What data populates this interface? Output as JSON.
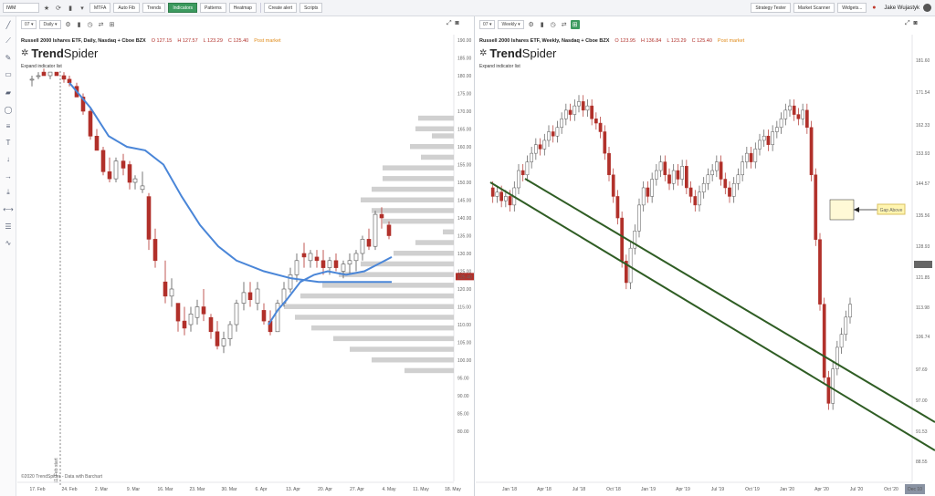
{
  "toolbar": {
    "symbol": "IWM",
    "buttons": [
      "MTFA",
      "Auto Fib",
      "Trends",
      "Indicators",
      "Patterns",
      "Heatmap",
      "Create alert",
      "Scripts"
    ],
    "right_buttons": [
      "Strategy Tester",
      "Market Scanner",
      "Widgets..."
    ],
    "user": "Jake Wujastyk"
  },
  "left_chart": {
    "interval_field": "07",
    "interval": "Daily",
    "title": "Russell 2000 Ishares ETF, Daily, Nasdaq + Cboe BZX",
    "ohlc": {
      "o": "O 127.15",
      "h": "H 127.57",
      "l": "L 123.29",
      "c": "C 125.40"
    },
    "status": "Post market",
    "logo_a": "Trend",
    "logo_b": "Spider",
    "expand": "Expand indicator list",
    "price_label": "125.40",
    "y_ticks": [
      "190.00",
      "185.00",
      "180.00",
      "175.00",
      "170.00",
      "165.00",
      "160.00",
      "155.00",
      "150.00",
      "145.00",
      "140.00",
      "135.00",
      "130.00",
      "125.00",
      "120.00",
      "115.00",
      "110.00",
      "105.00",
      "100.00",
      "95.00",
      "90.00",
      "85.00",
      "80.00"
    ],
    "x_ticks": [
      "17. Feb",
      "24. Feb",
      "2. Mar",
      "9. Mar",
      "16. Mar",
      "23. Mar",
      "30. Mar",
      "6. Apr",
      "13. Apr",
      "20. Apr",
      "27. Apr",
      "4. May",
      "11. May",
      "18. May"
    ],
    "copyright": "©2020 TrendSpider - Data with Barchart",
    "vline_label": "11. Feb start"
  },
  "right_chart": {
    "interval_field": "07",
    "interval": "Weekly",
    "title": "Russell 2000 Ishares ETF, Weekly, Nasdaq + Cboe BZX",
    "ohlc": {
      "o": "O 123.95",
      "h": "H 136.84",
      "l": "L 123.29",
      "c": "C 125.40"
    },
    "status": "Post market",
    "logo_a": "Trend",
    "logo_b": "Spider",
    "expand": "Expand indicator list",
    "price_label": "125.40",
    "gap_label": "Gap Above",
    "y_ticks": [
      "181.60",
      "171.54",
      "162.33",
      "153.93",
      "144.57",
      "135.56",
      "128.93",
      "121.85",
      "113.98",
      "106.74",
      "97.69",
      "97.00",
      "91.53",
      "88.55"
    ],
    "x_ticks": [
      "Jan '18",
      "Apr '18",
      "Jul '18",
      "Oct '18",
      "Jan '19",
      "Apr '19",
      "Jul '19",
      "Oct '19",
      "Jan '20",
      "Apr '20",
      "Jul '20",
      "Oct '20"
    ],
    "x_last": "Dec 10"
  },
  "colors": {
    "up": "#ffffff",
    "down": "#b1302a",
    "ma": "#4a86d8",
    "trend": "#2f5d24",
    "profile": "#c8c8c8",
    "gap_fill": "#fff9d6",
    "label_bg": "#b1302a"
  },
  "icons": [
    "star-icon",
    "refresh-icon",
    "candle-icon",
    "line-tool-icon",
    "ray-icon",
    "brush-icon",
    "rectangle-icon",
    "fib-icon",
    "circle-icon",
    "text-icon",
    "arrow-icon",
    "gear-icon",
    "clock-icon",
    "expand-icon",
    "camera-icon"
  ]
}
